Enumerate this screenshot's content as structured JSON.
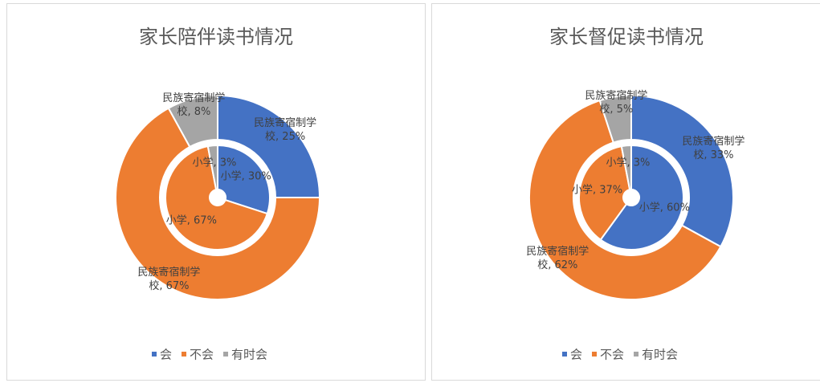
{
  "chart_data": [
    {
      "type": "donut",
      "title": "家长陪伴读书情况",
      "categories": [
        "会",
        "不会",
        "有时会"
      ],
      "colors": [
        "#4472c4",
        "#ed7d31",
        "#a5a5a5"
      ],
      "series": [
        {
          "name": "民族寄宿制学校",
          "values": [
            25,
            67,
            8
          ],
          "value_labels": [
            "民族寄宿制学校, 25%",
            "民族寄宿制学校, 67%",
            "民族寄宿制学校, 8%"
          ]
        },
        {
          "name": "小学",
          "values": [
            30,
            67,
            3
          ],
          "value_labels": [
            "小学, 30%",
            "小学, 67%",
            "小学, 3%"
          ]
        }
      ]
    },
    {
      "type": "donut",
      "title": "家长督促读书情况",
      "categories": [
        "会",
        "不会",
        "有时会"
      ],
      "colors": [
        "#4472c4",
        "#ed7d31",
        "#a5a5a5"
      ],
      "series": [
        {
          "name": "民族寄宿制学校",
          "values": [
            33,
            62,
            5
          ],
          "value_labels": [
            "民族寄宿制学校, 33%",
            "民族寄宿制学校, 62%",
            "民族寄宿制学校, 5%"
          ]
        },
        {
          "name": "小学",
          "values": [
            60,
            37,
            3
          ],
          "value_labels": [
            "小学, 60%",
            "小学, 37%",
            "小学, 3%"
          ]
        }
      ]
    }
  ]
}
